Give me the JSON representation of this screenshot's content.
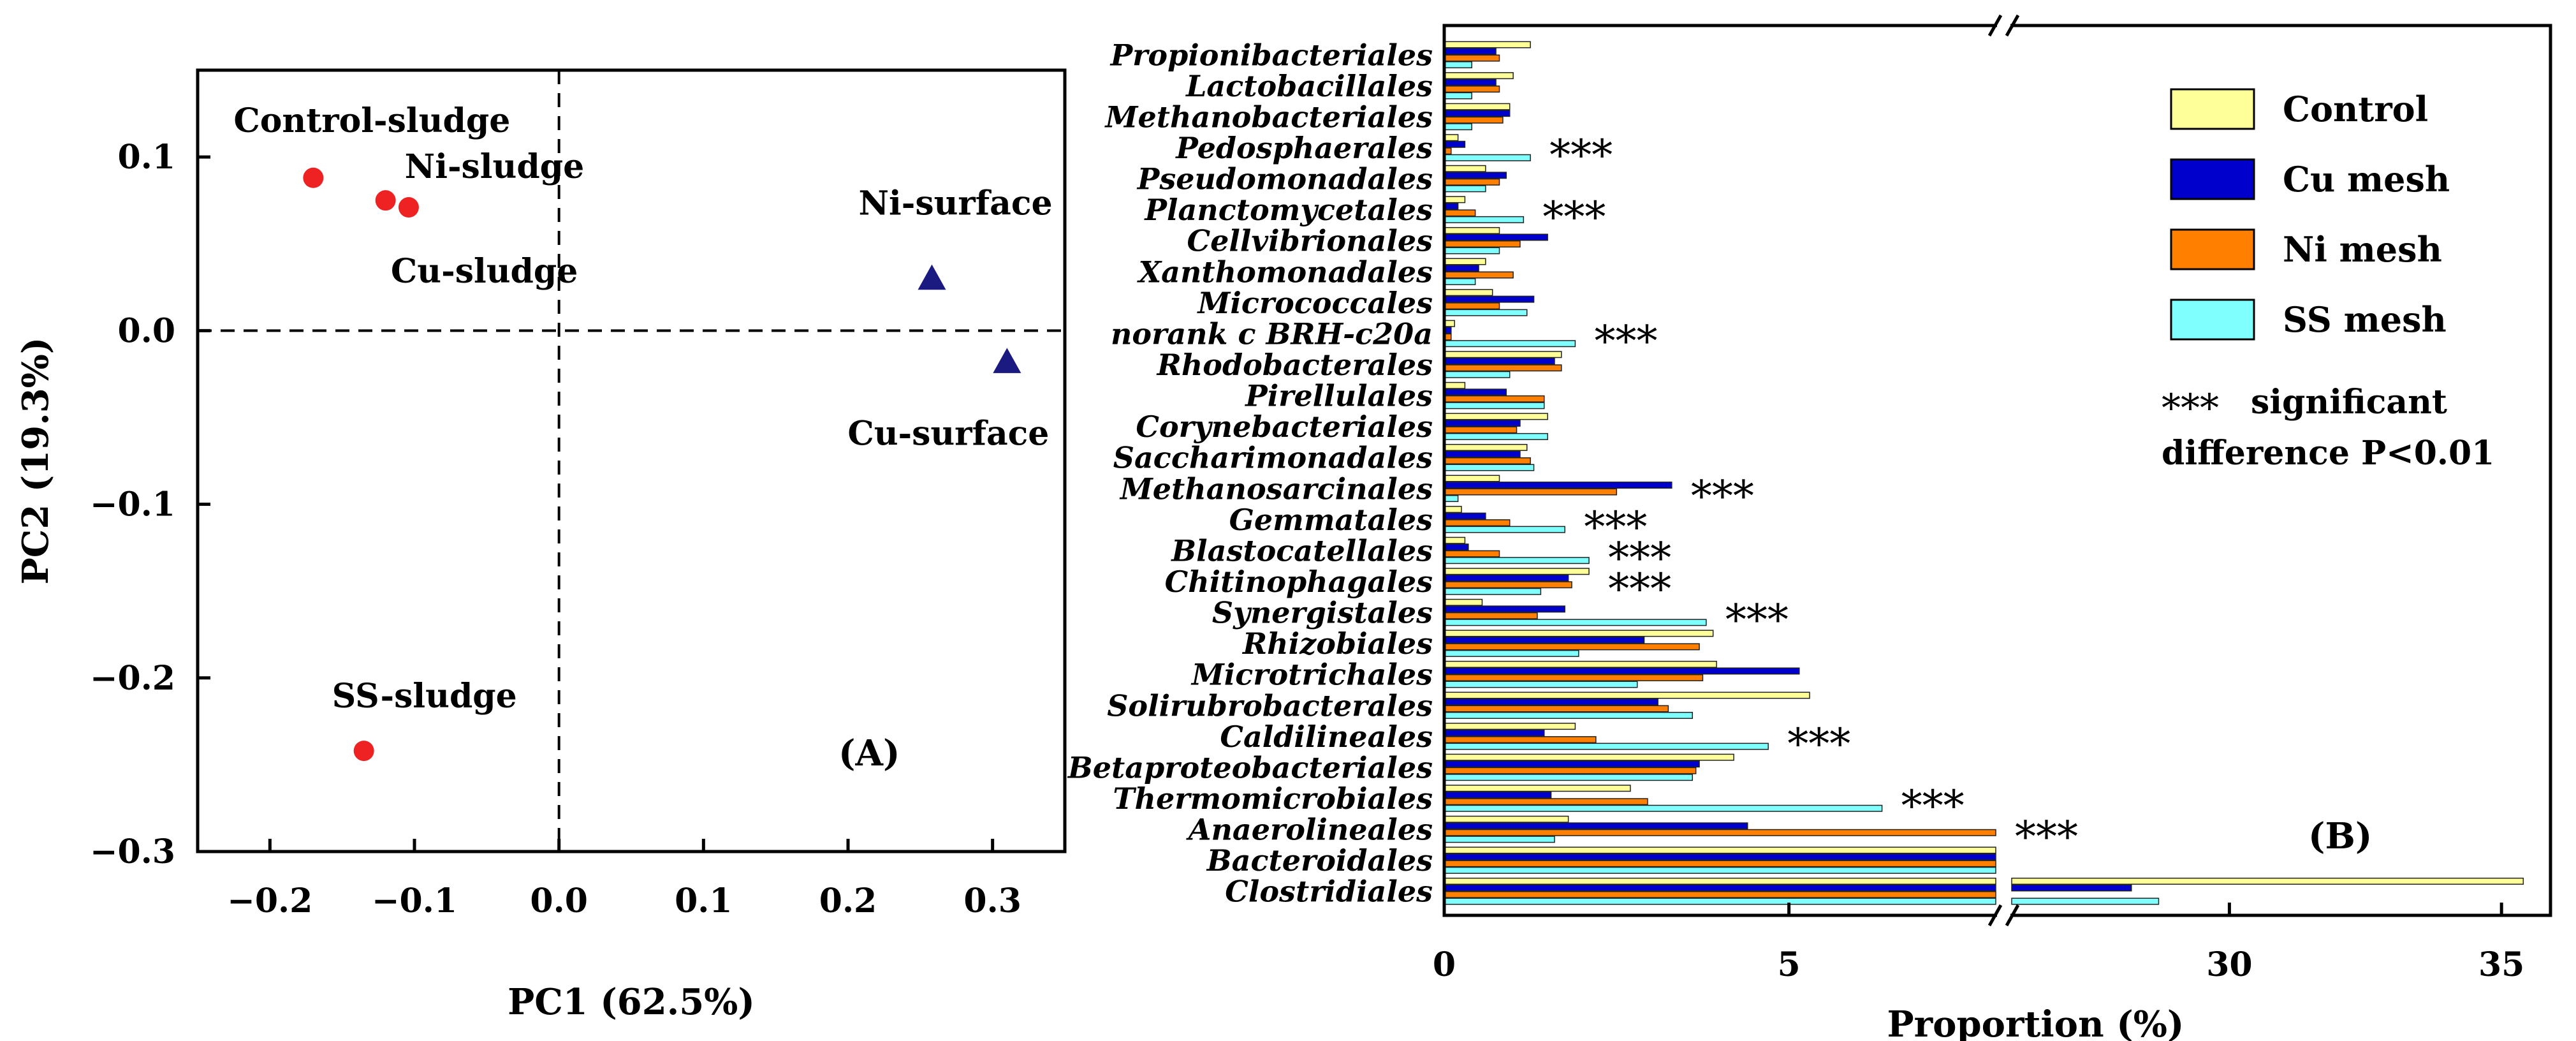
{
  "chart_data": [
    {
      "type": "scatter",
      "panel_label": "(A)",
      "xlabel": "PC1 (62.5%)",
      "ylabel": "PC2 (19.3%)",
      "xlim": [
        -0.25,
        0.35
      ],
      "ylim": [
        -0.3,
        0.15
      ],
      "xticks": [
        -0.2,
        -0.1,
        0.0,
        0.1,
        0.2,
        0.3
      ],
      "xtick_labels": [
        "−0.2",
        "−0.1",
        "0.0",
        "0.1",
        "0.2",
        "0.3"
      ],
      "yticks": [
        -0.3,
        -0.2,
        -0.1,
        0.0,
        0.1
      ],
      "ytick_labels": [
        "−0.3",
        "−0.2",
        "−0.1",
        "0.0",
        "0.1"
      ],
      "reference_lines": {
        "x": 0,
        "y": 0
      },
      "points": [
        {
          "label": "Control-sludge",
          "x": -0.17,
          "y": 0.088,
          "marker": "circle",
          "color": "#ee2222"
        },
        {
          "label": "Ni-sludge",
          "x": -0.12,
          "y": 0.075,
          "marker": "circle",
          "color": "#ee2222"
        },
        {
          "label": "Cu-sludge",
          "x": -0.104,
          "y": 0.071,
          "marker": "circle",
          "color": "#ee2222"
        },
        {
          "label": "SS-sludge",
          "x": -0.135,
          "y": -0.242,
          "marker": "circle",
          "color": "#ee2222"
        },
        {
          "label": "Ni-surface",
          "x": 0.258,
          "y": 0.03,
          "marker": "triangle",
          "color": "#1a1a80"
        },
        {
          "label": "Cu-surface",
          "x": 0.31,
          "y": -0.018,
          "marker": "triangle",
          "color": "#1a1a80"
        }
      ]
    },
    {
      "type": "bar",
      "orientation": "horizontal",
      "panel_label": "(B)",
      "xlabel": "Proportion (%)",
      "broken_axis": {
        "break_at": 8.0,
        "resume_at": 26.0
      },
      "xticks": [
        0,
        5,
        30,
        35
      ],
      "xtick_labels": [
        "0",
        "5",
        "30",
        "35"
      ],
      "categories": [
        "Propionibacteriales",
        "Lactobacillales",
        "Methanobacteriales",
        "Pedosphaerales",
        "Pseudomonadales",
        "Planctomycetales",
        "Cellvibrionales",
        "Xanthomonadales",
        "Micrococcales",
        "norank c  BRH-c20a",
        "Rhodobacterales",
        "Pirellulales",
        "Corynebacteriales",
        "Saccharimonadales",
        "Methanosarcinales",
        "Gemmatales",
        "Blastocatellales",
        "Chitinophagales",
        "Synergistales",
        "Rhizobiales",
        "Microtrichales",
        "Solirubrobacterales",
        "Caldilineales",
        "Betaproteobacteriales",
        "Thermomicrobiales",
        "Anaerolineales",
        "Bacteroidales",
        "Clostridiales"
      ],
      "series": [
        {
          "name": "Control",
          "color": "#ffff99",
          "values": [
            1.25,
            1.0,
            0.95,
            0.2,
            0.6,
            0.3,
            0.8,
            0.6,
            0.7,
            0.15,
            1.7,
            0.3,
            1.5,
            1.2,
            0.8,
            0.25,
            0.3,
            2.1,
            0.55,
            3.9,
            3.95,
            5.3,
            1.9,
            4.2,
            2.7,
            1.8,
            8.0,
            35.4
          ]
        },
        {
          "name": "Cu mesh",
          "color": "#0000cc",
          "values": [
            0.75,
            0.75,
            0.95,
            0.3,
            0.9,
            0.2,
            1.5,
            0.5,
            1.3,
            0.1,
            1.6,
            0.9,
            1.1,
            1.1,
            3.3,
            0.6,
            0.35,
            1.8,
            1.75,
            2.9,
            5.15,
            3.1,
            1.45,
            3.7,
            1.55,
            4.4,
            8.0,
            28.2
          ]
        },
        {
          "name": "Ni mesh",
          "color": "#ff8000",
          "values": [
            0.8,
            0.8,
            0.85,
            0.1,
            0.8,
            0.45,
            1.1,
            1.0,
            0.8,
            0.1,
            1.7,
            1.45,
            1.05,
            1.25,
            2.5,
            0.95,
            0.8,
            1.85,
            1.35,
            3.7,
            3.75,
            3.25,
            2.2,
            3.65,
            2.95,
            8.35,
            8.0,
            8.0
          ]
        },
        {
          "name": "SS mesh",
          "color": "#80ffff",
          "values": [
            0.4,
            0.4,
            0.4,
            1.25,
            0.6,
            1.15,
            0.8,
            0.45,
            1.2,
            1.9,
            0.95,
            1.45,
            1.5,
            1.3,
            0.2,
            1.75,
            2.1,
            1.4,
            3.8,
            1.95,
            2.8,
            3.6,
            4.7,
            3.6,
            6.35,
            1.6,
            8.0,
            28.7
          ]
        }
      ],
      "significance": {
        "marker": "***",
        "color": "#ee2222",
        "categories": [
          "Pedosphaerales",
          "Planctomycetales",
          "norank c  BRH-c20a",
          "Methanosarcinales",
          "Gemmatales",
          "Blastocatellales",
          "Chitinophagales",
          "Synergistales",
          "Caldilineales",
          "Thermomicrobiales",
          "Anaerolineales"
        ],
        "legend_text_line1": "significant",
        "legend_text_line2": "difference P<0.01"
      },
      "legend_placement": "top-right"
    }
  ]
}
